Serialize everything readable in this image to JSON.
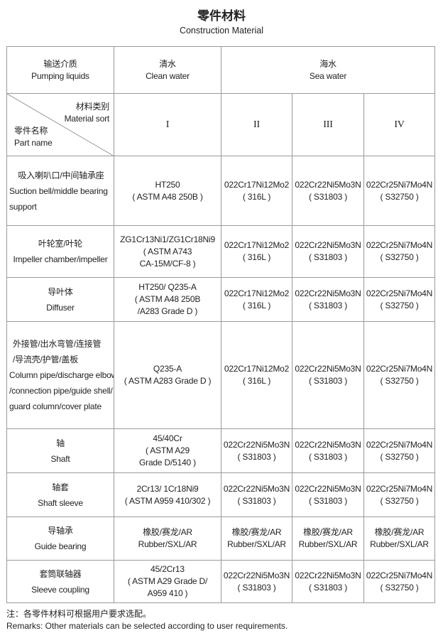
{
  "title": "零件材料",
  "subtitle": "Construction Material",
  "header": {
    "pumping_cn": "输送介质",
    "pumping_en": "Pumping liquids",
    "clean_cn": "清水",
    "clean_en": "Clean water",
    "sea_cn": "海水",
    "sea_en": "Sea water",
    "sort_cn": "材料类别",
    "sort_en": "Material sort",
    "part_cn": "零件名称",
    "part_en": "Part name",
    "classes": [
      "I",
      "II",
      "III",
      "IV"
    ]
  },
  "rows": [
    {
      "part": [
        "吸入喇叭口/中间轴承座",
        "Suction bell/middle bearing",
        "support"
      ],
      "c1": [
        "HT250",
        "( ASTM A48 250B )"
      ],
      "c2": [
        "022Cr17Ni12Mo2",
        "( 316L )"
      ],
      "c3": [
        "022Cr22Ni5Mo3N",
        "( S31803 )"
      ],
      "c4": [
        "022Cr25Ni7Mo4N",
        "( S32750 )"
      ]
    },
    {
      "part": [
        "叶轮室/叶轮",
        "Impeller chamber/impeller"
      ],
      "c1": [
        "ZG1Cr13Ni1/ZG1Cr18Ni9",
        "( ASTM A743",
        "CA-15M/CF-8 )"
      ],
      "c2": [
        "022Cr17Ni12Mo2",
        "( 316L )"
      ],
      "c3": [
        "022Cr22Ni5Mo3N",
        "( S31803 )"
      ],
      "c4": [
        "022Cr25Ni7Mo4N",
        "( S32750 )"
      ]
    },
    {
      "part": [
        "导叶体",
        "Diffuser"
      ],
      "c1": [
        "HT250/ Q235-A",
        "( ASTM A48 250B",
        "/A283 Grade D )"
      ],
      "c2": [
        "022Cr17Ni12Mo2",
        "( 316L )"
      ],
      "c3": [
        "022Cr22Ni5Mo3N",
        "( S31803 )"
      ],
      "c4": [
        "022Cr25Ni7Mo4N",
        "( S32750 )"
      ]
    },
    {
      "part": [
        "外接管/出水弯管/连接管",
        "/导流壳/护管/盖板",
        "Column pipe/discharge elbow",
        "/connection pipe/guide shell/",
        "guard column/cover plate"
      ],
      "c1": [
        "Q235-A",
        "( ASTM A283 Grade D )"
      ],
      "c2": [
        "022Cr17Ni12Mo2",
        "( 316L )"
      ],
      "c3": [
        "022Cr22Ni5Mo3N",
        "( S31803 )"
      ],
      "c4": [
        "022Cr25Ni7Mo4N",
        "( S32750 )"
      ]
    },
    {
      "part": [
        "轴",
        "Shaft"
      ],
      "c1": [
        "45/40Cr",
        "( ASTM A29",
        "Grade D/5140 )"
      ],
      "c2": [
        "022Cr22Ni5Mo3N",
        "( S31803 )"
      ],
      "c3": [
        "022Cr22Ni5Mo3N",
        "( S31803 )"
      ],
      "c4": [
        "022Cr25Ni7Mo4N",
        "( S32750 )"
      ]
    },
    {
      "part": [
        "轴套",
        "Shaft sleeve"
      ],
      "c1": [
        "2Cr13/ 1Cr18Ni9",
        "( ASTM A959 410/302 )"
      ],
      "c2": [
        "022Cr22Ni5Mo3N",
        "( S31803 )"
      ],
      "c3": [
        "022Cr22Ni5Mo3N",
        "( S31803 )"
      ],
      "c4": [
        "022Cr25Ni7Mo4N",
        "( S32750 )"
      ]
    },
    {
      "part": [
        "导轴承",
        "Guide bearing"
      ],
      "c1": [
        "橡胶/赛龙/AR",
        "Rubber/SXL/AR"
      ],
      "c2": [
        "橡胶/赛龙/AR",
        "Rubber/SXL/AR"
      ],
      "c3": [
        "橡胶/赛龙/AR",
        "Rubber/SXL/AR"
      ],
      "c4": [
        "橡胶/赛龙/AR",
        "Rubber/SXL/AR"
      ]
    },
    {
      "part": [
        "套筒联轴器",
        "Sleeve coupling"
      ],
      "c1": [
        "45/2Cr13",
        "( ASTM A29 Grade D/",
        "A959 410 )"
      ],
      "c2": [
        "022Cr22Ni5Mo3N",
        "( S31803 )"
      ],
      "c3": [
        "022Cr22Ni5Mo3N",
        "( S31803 )"
      ],
      "c4": [
        "022Cr25Ni7Mo4N",
        "( S32750 )"
      ]
    }
  ],
  "notes": {
    "cn": "注：各零件材料可根据用户要求选配。",
    "en": "Remarks: Other materials can be selected according to user requirements."
  }
}
